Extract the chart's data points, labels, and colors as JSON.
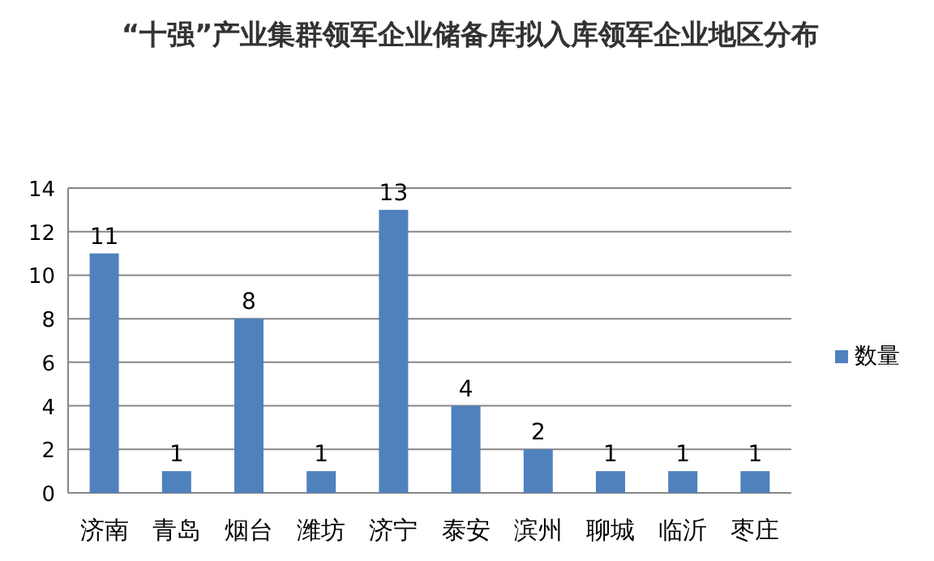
{
  "chart_data": {
    "type": "bar",
    "title": "“十强”产业集群领军企业储备库拟入库领军企业地区分布",
    "categories": [
      "济南",
      "青岛",
      "烟台",
      "潍坊",
      "济宁",
      "泰安",
      "滨州",
      "聊城",
      "临沂",
      "枣庄"
    ],
    "series": [
      {
        "name": "数量",
        "color": "#4f81bd",
        "values": [
          11,
          1,
          8,
          1,
          13,
          4,
          2,
          1,
          1,
          1
        ]
      }
    ],
    "ylim": [
      0,
      14
    ],
    "yticks": [
      0,
      2,
      4,
      6,
      8,
      10,
      12,
      14
    ],
    "grid": "y",
    "legend": "right",
    "data_labels": true
  }
}
